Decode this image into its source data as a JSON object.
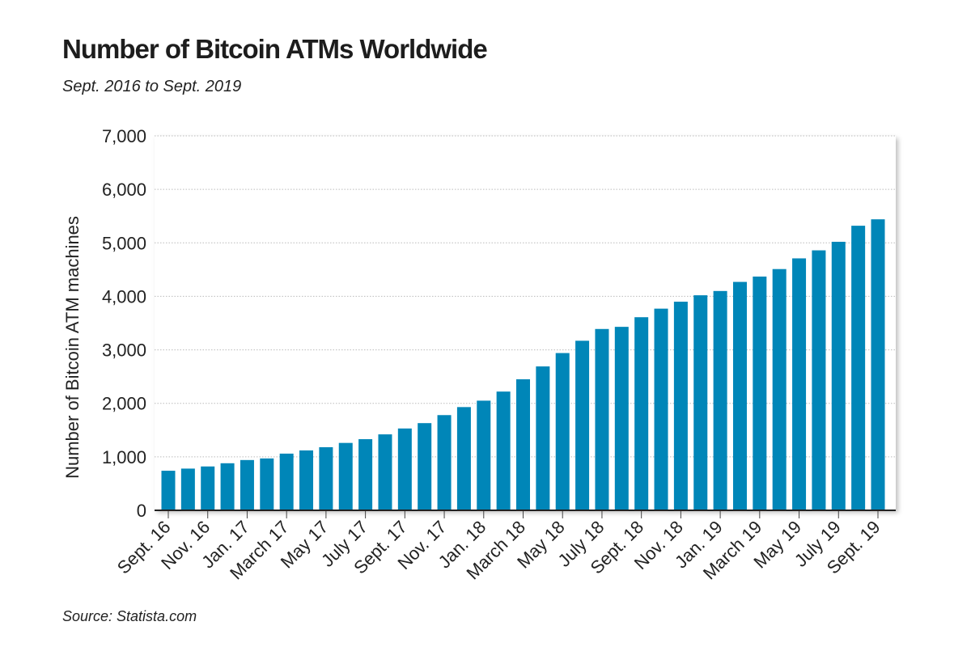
{
  "title": "Number of Bitcoin ATMs Worldwide",
  "subtitle": "Sept. 2016 to Sept. 2019",
  "source": "Source: Statista.com",
  "chart_data": {
    "type": "bar",
    "title": "Number of Bitcoin ATMs Worldwide",
    "subtitle": "Sept. 2016 to Sept. 2019",
    "xlabel": "",
    "ylabel": "Number of Bitcoin ATM machines",
    "ylim": [
      0,
      7000
    ],
    "yticks": [
      0,
      1000,
      2000,
      3000,
      4000,
      5000,
      6000,
      7000
    ],
    "ytick_labels": [
      "0",
      "1,000",
      "2,000",
      "3,000",
      "4,000",
      "5,000",
      "6,000",
      "7,000"
    ],
    "grid": "horizontal dotted",
    "color": "#0086b8",
    "categories": [
      "Sept. 16",
      "",
      "Nov. 16",
      "",
      "Jan. 17",
      "",
      "March 17",
      "",
      "May 17",
      "",
      "July 17",
      "",
      "Sept. 17",
      "",
      "Nov. 17",
      "",
      "Jan. 18",
      "",
      "March 18",
      "",
      "May 18",
      "",
      "July 18",
      "",
      "Sept. 18",
      "",
      "Nov. 18",
      "",
      "Jan. 19",
      "",
      "March 19",
      "",
      "May 19",
      "",
      "July 19",
      "",
      "Sept. 19"
    ],
    "values": [
      740,
      780,
      820,
      880,
      940,
      970,
      1060,
      1120,
      1180,
      1260,
      1330,
      1420,
      1530,
      1630,
      1780,
      1930,
      2050,
      2220,
      2450,
      2690,
      2940,
      3170,
      3390,
      3430,
      3610,
      3770,
      3900,
      4020,
      4100,
      4270,
      4370,
      4510,
      4710,
      4860,
      5020,
      5320,
      5440
    ]
  }
}
